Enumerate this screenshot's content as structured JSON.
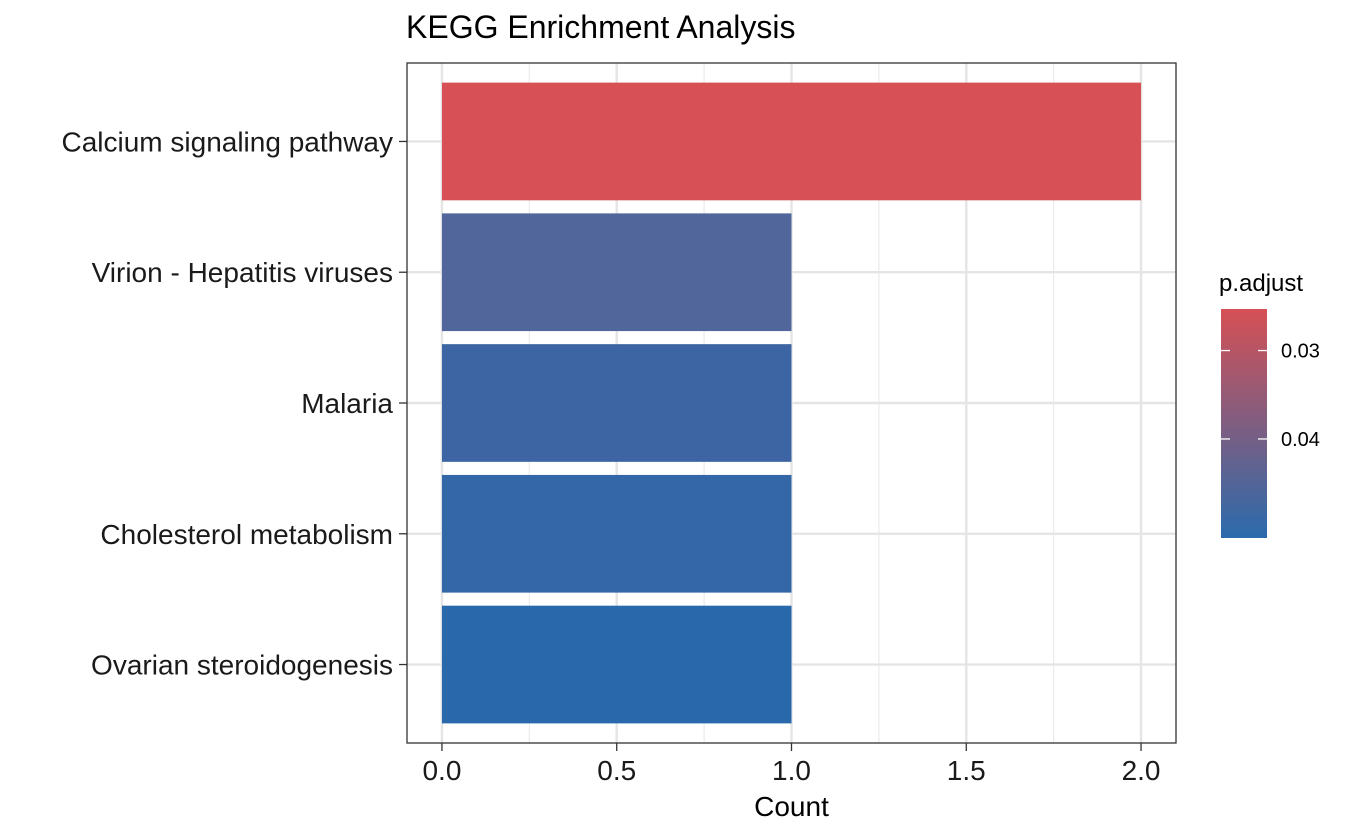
{
  "chart_data": {
    "type": "bar",
    "orientation": "horizontal",
    "title": "KEGG Enrichment Analysis",
    "xlabel": "Count",
    "ylabel": "",
    "xlim": [
      -0.1,
      2.1
    ],
    "x_ticks": [
      "0.0",
      "0.5",
      "1.0",
      "1.5",
      "2.0"
    ],
    "grid": true,
    "categories": [
      "Calcium signaling pathway",
      "Virion - Hepatitis viruses",
      "Malaria",
      "Cholesterol metabolism",
      "Ovarian steroidogenesis"
    ],
    "values": [
      2,
      1,
      1,
      1,
      1
    ],
    "p_adjust": [
      0.0263,
      0.0418,
      0.0462,
      0.0485,
      0.0505
    ],
    "bar_colors": [
      "#D65055",
      "#51669B",
      "#3D65A3",
      "#3467A8",
      "#2969AB"
    ],
    "legend": {
      "title": "p.adjust",
      "position": "right",
      "ticks": [
        "0.03",
        "0.04"
      ],
      "tick_values": [
        0.03,
        0.04
      ],
      "range": [
        0.0253,
        0.0512
      ],
      "color_low_padj": "#D65055",
      "color_high_padj": "#2A6BAC"
    }
  }
}
